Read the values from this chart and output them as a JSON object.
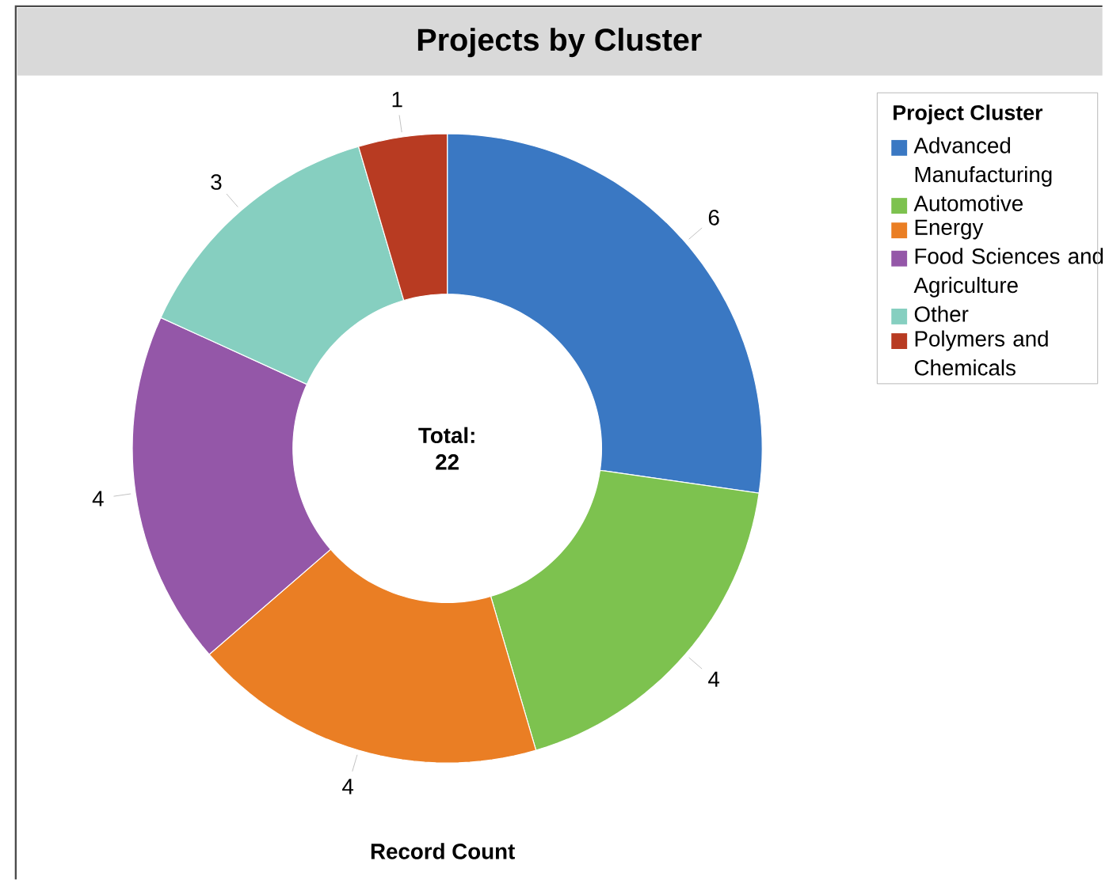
{
  "chart_data": {
    "type": "donut",
    "title": "Projects by Cluster",
    "xlabel": "Record Count",
    "legend_title": "Project Cluster",
    "categories": [
      "Advanced Manufacturing",
      "Automotive",
      "Energy",
      "Food Sciences and Agriculture",
      "Other",
      "Polymers and Chemicals"
    ],
    "values": [
      6,
      4,
      4,
      4,
      3,
      1
    ],
    "colors": [
      "#3a78c3",
      "#7dc24f",
      "#ea7e24",
      "#9457a8",
      "#86cfc0",
      "#b83b22"
    ],
    "data_labels": true,
    "legend": "top right",
    "annotations": [
      "Total: 22"
    ]
  }
}
